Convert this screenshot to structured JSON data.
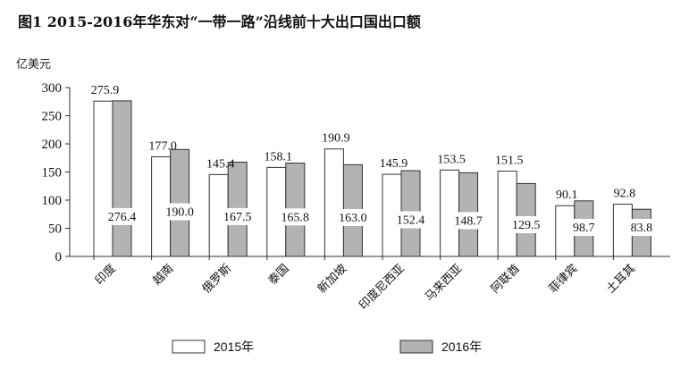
{
  "chart_data": {
    "type": "bar",
    "title": "图1 2015-2016年华东对“一带一路”沿线前十大出口国出口额",
    "ylabel": "亿美元",
    "xlabel": "",
    "ylim": [
      0,
      300
    ],
    "yticks": [
      0,
      50,
      100,
      150,
      200,
      250,
      300
    ],
    "categories": [
      "印度",
      "越南",
      "俄罗斯",
      "泰国",
      "新加坡",
      "印度尼西亚",
      "马来西亚",
      "阿联酋",
      "菲律宾",
      "土耳其"
    ],
    "series": [
      {
        "name": "2015年",
        "values": [
          275.9,
          177.0,
          145.4,
          158.1,
          190.9,
          145.9,
          153.5,
          151.5,
          90.1,
          92.8
        ],
        "color": "#ffffff"
      },
      {
        "name": "2016年",
        "values": [
          276.4,
          190.0,
          167.5,
          165.8,
          163.0,
          152.4,
          148.7,
          129.5,
          98.7,
          83.8
        ],
        "color": "#b3b3b3"
      }
    ],
    "value_labels": {
      "2015年": [
        "275.9",
        "177.0",
        "145.4",
        "158.1",
        "190.9",
        "145.9",
        "153.5",
        "151.5",
        "90.1",
        "92.8"
      ],
      "2016年": [
        "276.4",
        "190.0",
        "167.5",
        "165.8",
        "163.0",
        "152.4",
        "148.7",
        "129.5",
        "98.7",
        "83.8"
      ]
    },
    "legend_position": "bottom",
    "grid": false
  }
}
